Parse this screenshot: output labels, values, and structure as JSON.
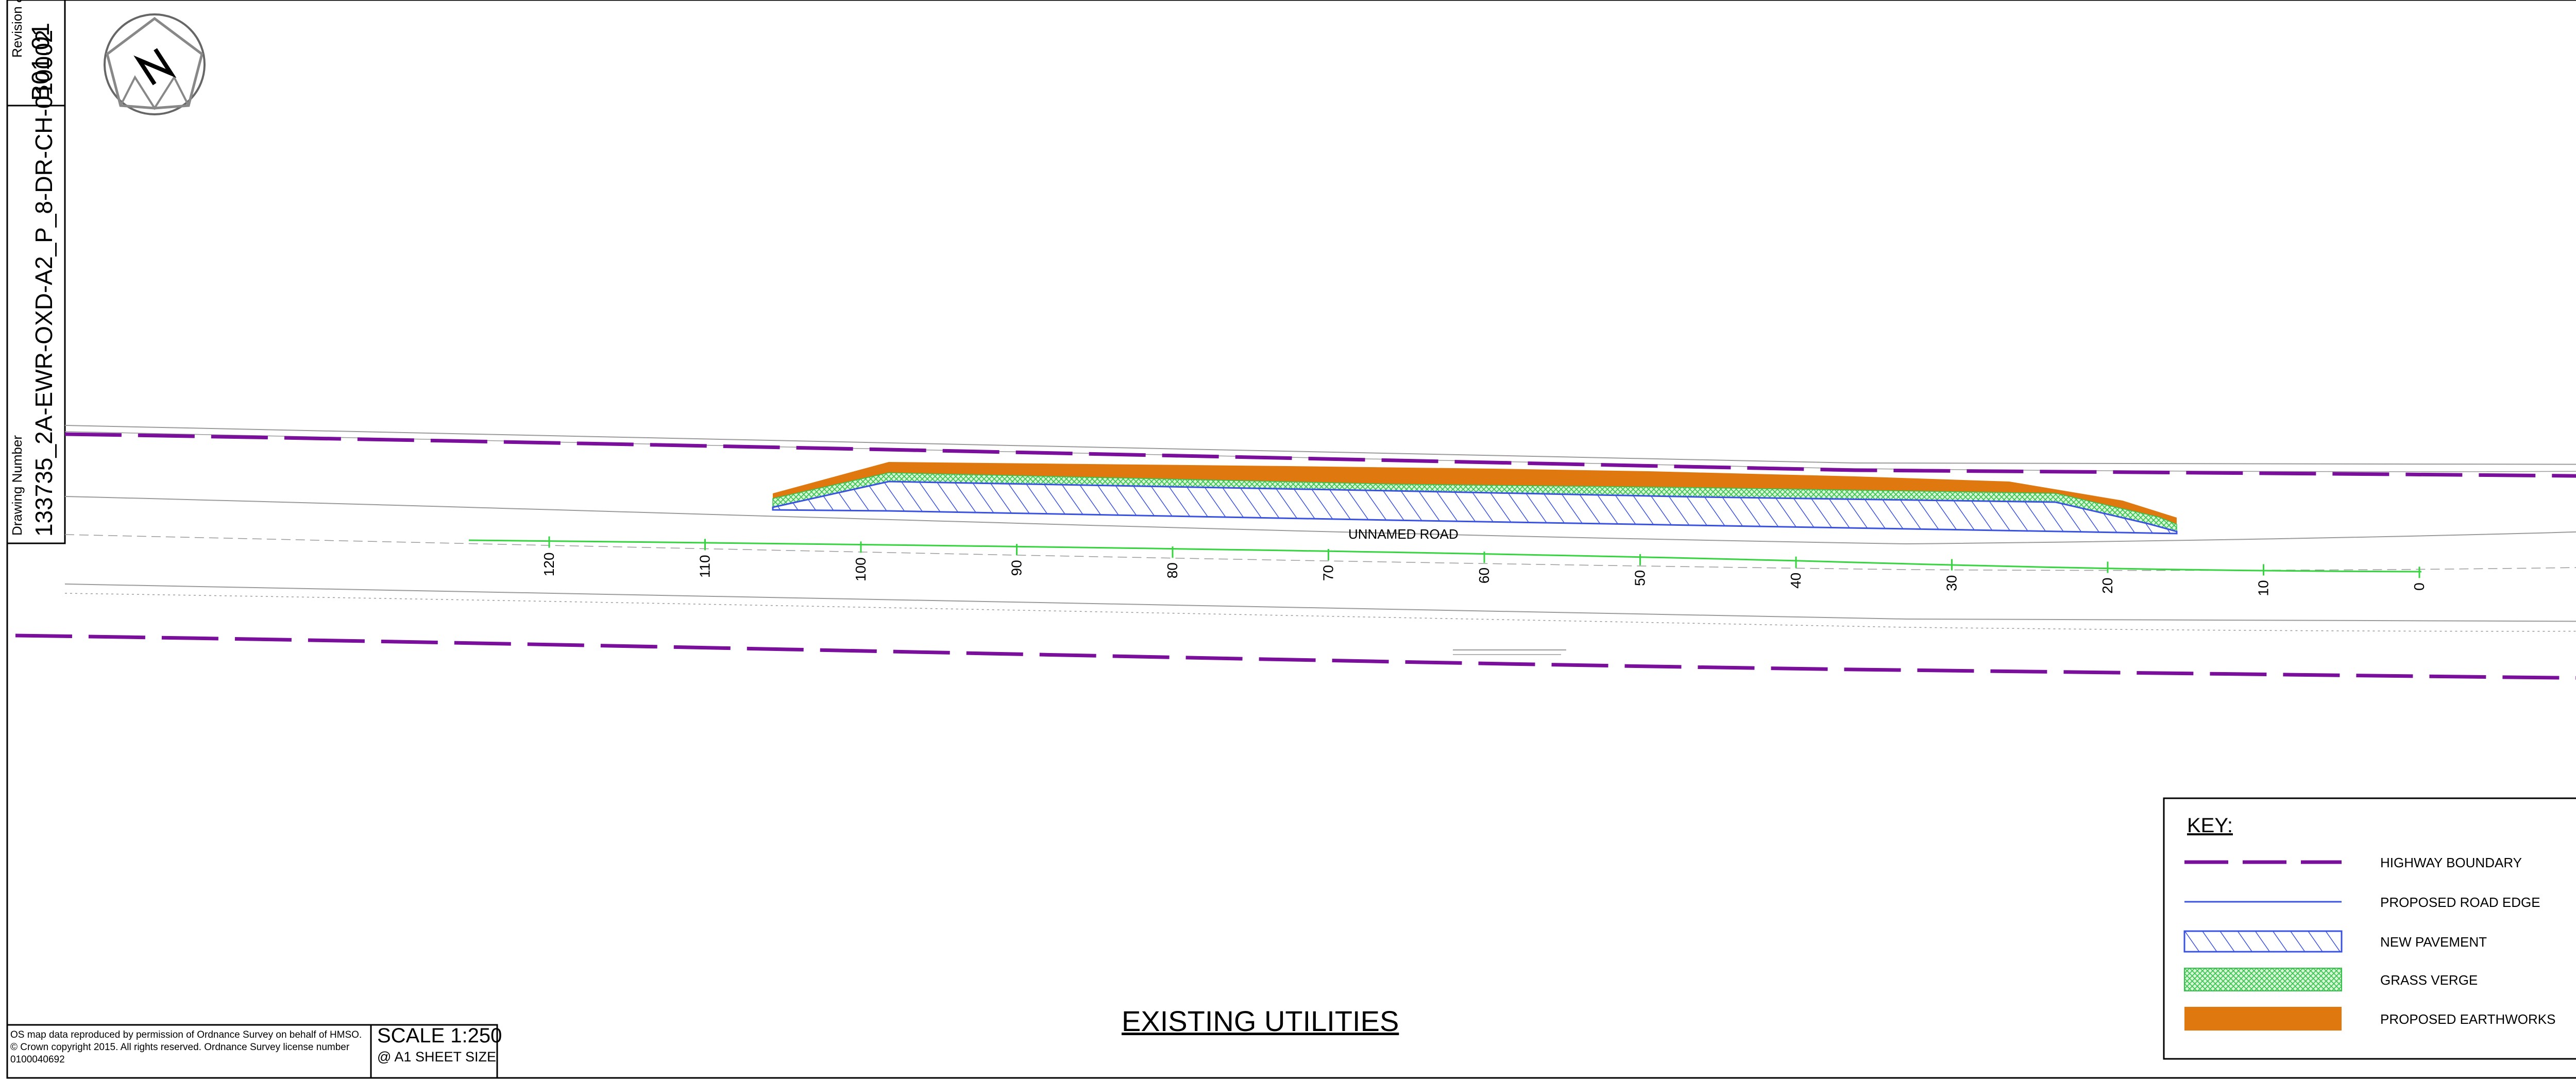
{
  "title_block": {
    "revision_label": "Revision & Versi",
    "revision_value": "B01.01",
    "drawing_number_label": "Drawing Number",
    "drawing_number_value": "133735_2A-EWR-OXD-A2_P_8-DR-CH-010002"
  },
  "north_arrow": {
    "icon": "north-arrow-icon",
    "letter": "N"
  },
  "drawing": {
    "title": "EXISTING UTILITIES",
    "road_name": "UNNAMED ROAD",
    "chainage_labels": [
      "120",
      "110",
      "100",
      "90",
      "80",
      "70",
      "60",
      "50",
      "40",
      "30",
      "20",
      "10",
      "0"
    ]
  },
  "os_notice": "OS map data reproduced by permission of Ordnance Survey on behalf of HMSO. © Crown copyright 2015. All rights reserved. Ordnance Survey license number 0100040692",
  "scale": {
    "main": "SCALE 1:250",
    "sub": "@ A1 SHEET SIZE"
  },
  "key": {
    "title": "KEY:",
    "items": [
      {
        "label": "HIGHWAY BOUNDARY",
        "symbol": "dashed-line",
        "color": "#7a0f9c"
      },
      {
        "label": "PROPOSED ROAD EDGE",
        "symbol": "thin-line",
        "color": "#3a52e0"
      },
      {
        "label": "NEW PAVEMENT",
        "symbol": "hatch",
        "color": "#3a52e0"
      },
      {
        "label": "GRASS VERGE",
        "symbol": "crosshatch",
        "color": "#35c24a"
      },
      {
        "label": "PROPOSED EARTHWORKS",
        "symbol": "solid-fill",
        "color": "#e07810"
      }
    ]
  },
  "colors": {
    "highway_boundary": "#7a0f9c",
    "road_edge": "#3a52e0",
    "grass": "#35c24a",
    "earthworks": "#e07810",
    "chainage": "#36d43f",
    "existing_lines": "#9a9a9a"
  }
}
